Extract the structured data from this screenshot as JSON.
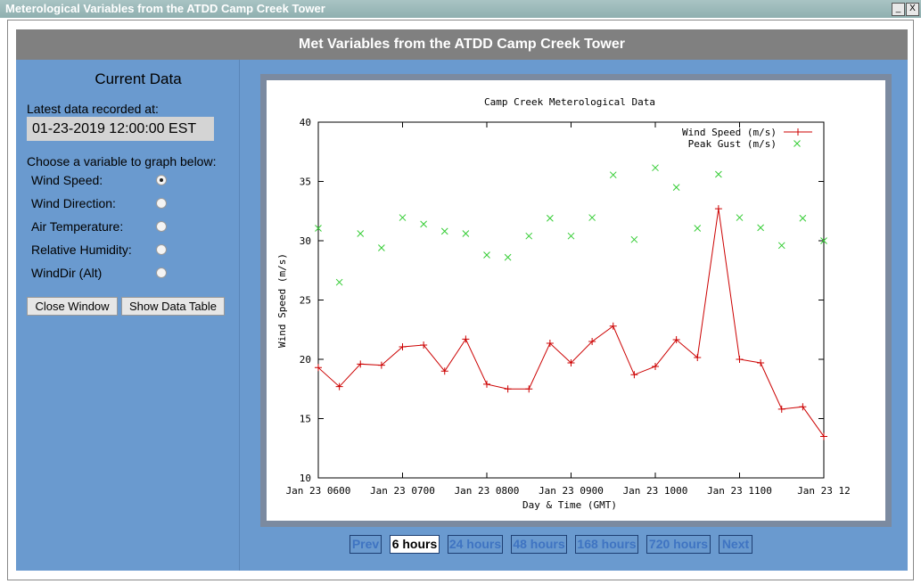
{
  "window": {
    "title": "Meterological Variables from the ATDD Camp Creek Tower"
  },
  "header": {
    "title": "Met Variables from the ATDD Camp Creek Tower"
  },
  "sidebar": {
    "heading": "Current Data",
    "latest_label": "Latest data recorded at:",
    "latest_value": "01-23-2019 12:00:00 EST",
    "choose_label": "Choose a variable to graph below:",
    "variables": [
      "Wind Speed:",
      "Wind Direction:",
      "Air Temperature:",
      "Relative Humidity:",
      "WindDir (Alt)"
    ],
    "selected": 0,
    "buttons": [
      "Close Window",
      "Show Data Table"
    ]
  },
  "range_buttons": {
    "labels": [
      "Prev",
      "6 hours",
      "24 hours",
      "48 hours",
      "168 hours",
      "720 hours",
      "Next"
    ],
    "selected": 1
  },
  "chart_data": {
    "type": "line",
    "title": "Camp Creek Meterological Data",
    "x_label": "Day & Time (GMT)",
    "y_label": "Wind Speed (m/s)",
    "x": [
      6,
      6.25,
      6.5,
      6.75,
      7,
      7.25,
      7.5,
      7.75,
      8,
      8.25,
      8.5,
      8.75,
      9,
      9.25,
      9.5,
      9.75,
      10,
      10.25,
      10.5,
      10.75,
      11,
      11.25,
      11.5,
      11.75,
      12
    ],
    "xlim": [
      6,
      12
    ],
    "xticks": [
      {
        "value": 6,
        "label": "Jan 23 0600"
      },
      {
        "value": 7,
        "label": "Jan 23 0700"
      },
      {
        "value": 8,
        "label": "Jan 23 0800"
      },
      {
        "value": 9,
        "label": "Jan 23 0900"
      },
      {
        "value": 10,
        "label": "Jan 23 1000"
      },
      {
        "value": 11,
        "label": "Jan 23 1100"
      },
      {
        "value": 12,
        "label": "Jan 23 12"
      }
    ],
    "ylim": [
      10,
      40
    ],
    "yticks": [
      10,
      15,
      20,
      25,
      30,
      35,
      40
    ],
    "grid": false,
    "legend": "top-right",
    "series": [
      {
        "name": "Wind Speed (m/s)",
        "color": "#cc0000",
        "style": "line",
        "values": [
          19.3,
          17.7,
          19.6,
          19.5,
          21.05,
          21.2,
          19.0,
          21.7,
          17.9,
          17.5,
          17.5,
          21.35,
          19.7,
          21.5,
          22.8,
          18.7,
          19.4,
          21.65,
          20.15,
          32.7,
          20.0,
          19.7,
          15.8,
          16.0,
          13.5
        ]
      },
      {
        "name": "Peak Gust (m/s)",
        "color": "#33cc33",
        "style": "points",
        "values": [
          31.05,
          26.5,
          30.6,
          29.4,
          31.95,
          31.4,
          30.8,
          30.6,
          28.8,
          28.6,
          30.4,
          31.9,
          30.4,
          31.95,
          35.55,
          30.1,
          36.15,
          34.5,
          31.05,
          35.6,
          31.95,
          31.1,
          29.6,
          31.9,
          30.0
        ]
      }
    ]
  }
}
